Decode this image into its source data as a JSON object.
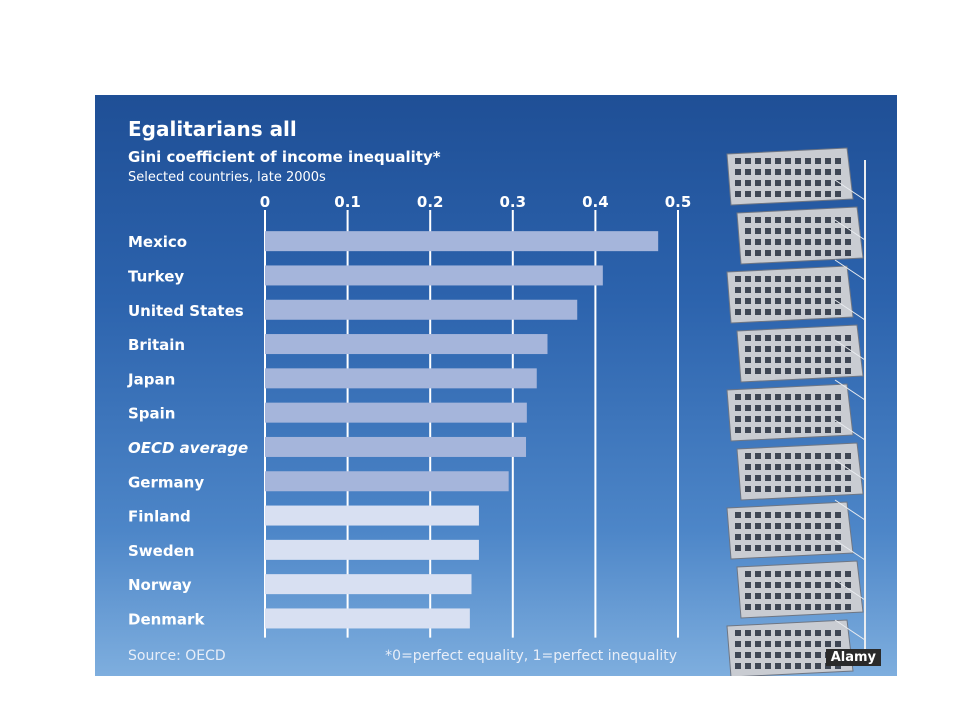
{
  "chart_data": {
    "type": "bar",
    "orientation": "horizontal",
    "title": "Egalitarians all",
    "subtitle": "Gini coefficient of income inequality*",
    "subsubtitle": "Selected countries, late 2000s",
    "categories": [
      "Mexico",
      "Turkey",
      "United States",
      "Britain",
      "Japan",
      "Spain",
      "OECD average",
      "Germany",
      "Finland",
      "Sweden",
      "Norway",
      "Denmark"
    ],
    "values": [
      0.476,
      0.409,
      0.378,
      0.342,
      0.329,
      0.317,
      0.316,
      0.295,
      0.259,
      0.259,
      0.25,
      0.248
    ],
    "xlim": [
      0,
      0.5
    ],
    "xticks": [
      "0",
      "0.1",
      "0.2",
      "0.3",
      "0.4",
      "0.5"
    ],
    "xtick_values": [
      0,
      0.1,
      0.2,
      0.3,
      0.4,
      0.5
    ],
    "axis_position": "top",
    "grid": true,
    "highlight_category": "OECD average",
    "lighter_categories": [
      "Finland",
      "Sweden",
      "Norway",
      "Denmark"
    ],
    "source": "Source: OECD",
    "footnote": "*0=perfect equality, 1=perfect inequality"
  },
  "colors": {
    "bar": "#a5b5db",
    "bar_light": "#d8e0f2",
    "gridline": "#ffffff",
    "text": "#ffffff"
  },
  "photo": {
    "icon": "twisting-tower-photo",
    "credit": "Alamy"
  }
}
